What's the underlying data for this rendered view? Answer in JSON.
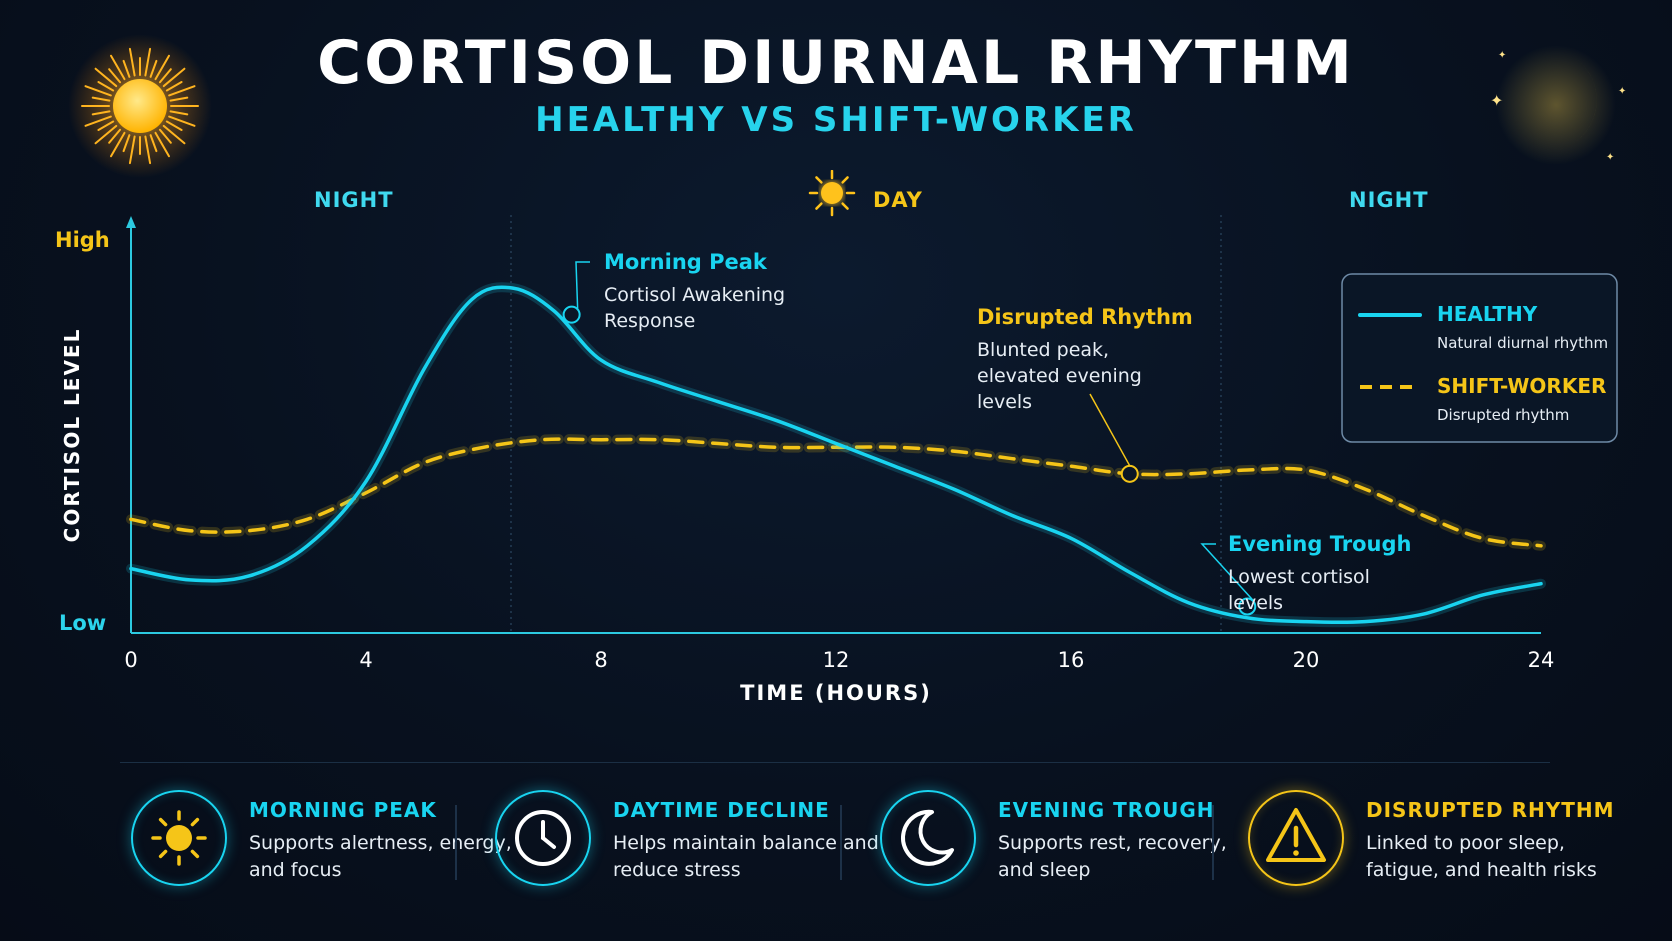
{
  "header": {
    "title": "CORTISOL DIURNAL RHYTHM",
    "subtitle": "HEALTHY VS SHIFT-WORKER"
  },
  "period_bar": {
    "night_left": "NIGHT",
    "day": "DAY",
    "night_right": "NIGHT"
  },
  "chart_data": {
    "type": "line",
    "xlabel": "TIME (HOURS)",
    "ylabel": "CORTISOL LEVEL",
    "xlim": [
      0,
      24
    ],
    "ylim": [
      0,
      100
    ],
    "x_ticks": [
      0,
      4,
      8,
      12,
      16,
      20,
      24
    ],
    "y_tick_labels": {
      "high": "High",
      "low": "Low"
    },
    "grid": false,
    "legend_position": "top-right",
    "series": [
      {
        "name": "HEALTHY",
        "description": "Natural diurnal rhythm",
        "color": "#19d4f0",
        "style": "solid",
        "x": [
          0,
          1,
          2,
          3,
          4,
          5,
          5.8,
          6.5,
          7.2,
          8,
          9,
          10,
          11,
          12,
          13,
          14,
          15,
          16,
          17,
          18,
          19,
          20,
          21,
          22,
          23,
          24
        ],
        "y": [
          17,
          14,
          15,
          23,
          40,
          70,
          88,
          91,
          85,
          72,
          66,
          61,
          56,
          50,
          44,
          38,
          31,
          25,
          16,
          8,
          4,
          3,
          3,
          5,
          10,
          13
        ]
      },
      {
        "name": "SHIFT-WORKER",
        "description": "Disrupted rhythm",
        "color": "#f5c518",
        "style": "dashed",
        "x": [
          0,
          1,
          2,
          3,
          4,
          5,
          6,
          7,
          8,
          9,
          10,
          11,
          12,
          13,
          14,
          15,
          16,
          17,
          18,
          19,
          20,
          21,
          22,
          23,
          24
        ],
        "y": [
          30,
          27,
          27,
          30,
          37,
          45,
          49,
          51,
          51,
          51,
          50,
          49,
          49,
          49,
          48,
          46,
          44,
          42,
          42,
          43,
          43,
          38,
          31,
          25,
          23
        ]
      }
    ],
    "annotations": [
      {
        "title": "Morning Peak",
        "text": "Cortisol Awakening Response",
        "series": 0,
        "x": 7.5,
        "y": 84,
        "color": "#19d4f0"
      },
      {
        "title": "Disrupted Rhythm",
        "text": "Blunted peak, elevated evening levels",
        "series": 1,
        "x": 17,
        "y": 42,
        "color": "#f5c518"
      },
      {
        "title": "Evening Trough",
        "text": "Lowest cortisol levels",
        "series": 0,
        "x": 19,
        "y": 7,
        "color": "#19d4f0"
      }
    ]
  },
  "cards": [
    {
      "title": "MORNING PEAK",
      "desc": "Supports alertness, energy, and focus",
      "icon": "sun-icon",
      "color": "#19d4f0",
      "icon_color": "#f5c518"
    },
    {
      "title": "DAYTIME DECLINE",
      "desc": "Helps maintain balance and reduce stress",
      "icon": "clock-icon",
      "color": "#19d4f0",
      "icon_color": "#ffffff"
    },
    {
      "title": "EVENING TROUGH",
      "desc": "Supports rest, recovery, and sleep",
      "icon": "moon-icon",
      "color": "#19d4f0",
      "icon_color": "#ffffff"
    },
    {
      "title": "DISRUPTED RHYTHM",
      "desc": "Linked to poor sleep, fatigue, and health risks",
      "icon": "warning-icon",
      "color": "#f5c518",
      "icon_color": "#f5c518"
    }
  ]
}
